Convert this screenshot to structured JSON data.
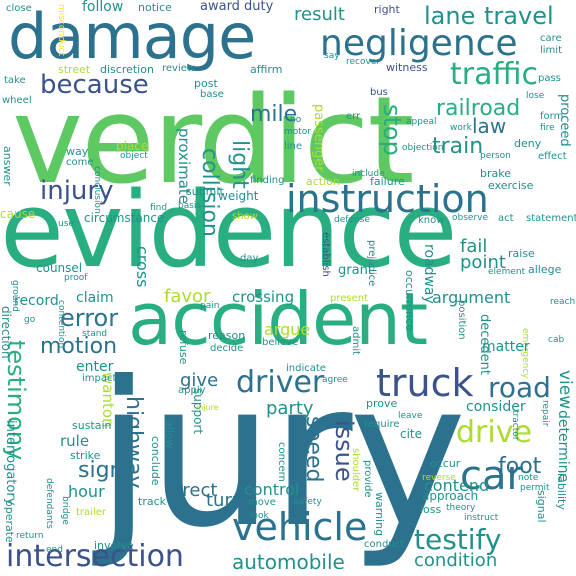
{
  "palette": {
    "dark_purple": "#440154",
    "indigo": "#3b528b",
    "teal_blue": "#2c728e",
    "teal": "#21918c",
    "green_teal": "#28ae80",
    "green": "#5ec962",
    "light_green": "#addc30",
    "yellow": "#fde725"
  },
  "words": {
    "verdict": "verdict",
    "evidence": "evidence",
    "jury": "jury",
    "accident": "accident",
    "damage": "damage",
    "instruction": "instruction",
    "negligence": "negligence",
    "vehicle": "vehicle",
    "intersection": "intersection",
    "truck": "truck",
    "driver": "driver",
    "automobile": "automobile",
    "testify": "testify",
    "car": "car",
    "traffic": "traffic",
    "drive": "drive",
    "road": "road",
    "injury": "injury",
    "because": "because",
    "collision": "collision",
    "lane": "lane",
    "travel": "travel",
    "railroad": "railroad",
    "train": "train",
    "law": "law",
    "stop": "stop",
    "mile": "mile",
    "light": "light",
    "error": "error",
    "motion": "motion",
    "testimony": "testimony",
    "highway": "highway",
    "speed": "speed",
    "issue": "issue",
    "foot": "foot",
    "direct": "direct",
    "condition": "condition",
    "sign": "sign",
    "result": "result",
    "proximate": "proximate",
    "favor": "favor",
    "cross": "cross",
    "crossing": "crossing",
    "argument": "argument",
    "fail": "fail",
    "point": "point",
    "give": "give",
    "party": "party",
    "turn": "turn",
    "control": "control",
    "contend": "contend",
    "consider": "consider",
    "matter": "matter",
    "hour": "hour",
    "rule": "rule",
    "wanton": "wanton",
    "enter": "enter",
    "argue": "argue",
    "interrogatory": "interrogatory",
    "claim": "claim",
    "record": "record",
    "counsel": "counsel",
    "cause": "cause",
    "circumstance": "circumstance",
    "award": "award",
    "duty": "duty",
    "follow": "follow",
    "notice": "notice",
    "close": "close",
    "right": "right",
    "street": "street",
    "discretion": "discretion",
    "review": "review",
    "affirm": "affirm",
    "witness": "witness",
    "recover": "recover",
    "say": "say",
    "pass": "pass",
    "take": "take",
    "wheel": "wheel",
    "post": "post",
    "base": "base",
    "bus": "bus",
    "passenger": "passenger",
    "err": "err",
    "way": "way",
    "place": "place",
    "object": "object",
    "come": "come",
    "answer": "answer",
    "conclusion": "conclusion",
    "support": "support",
    "weight": "weight",
    "finding": "finding",
    "action": "action",
    "failure": "failure",
    "include": "include",
    "brake": "brake",
    "exercise": "exercise",
    "submit": "submit",
    "basis": "basis",
    "show": "show",
    "defense": "defense",
    "know": "know",
    "observe": "observe",
    "act": "act",
    "statement": "statement",
    "establish": "establish",
    "grant": "grant",
    "raise": "raise",
    "allege": "allege",
    "element": "element",
    "present": "present",
    "roadway": "roadway",
    "day": "day",
    "pain": "pain",
    "proof": "proof",
    "reason": "reason",
    "decide": "decide",
    "believe": "believe",
    "admit": "admit",
    "refuse": "refuse",
    "indicate": "indicate",
    "agree": "agree",
    "impact": "impact",
    "apply": "apply",
    "injure": "injure",
    "prove": "prove",
    "leave": "leave",
    "cite": "cite",
    "require": "require",
    "occur": "occur",
    "reverse": "reverse",
    "approach": "approach",
    "loss": "loss",
    "theory": "theory",
    "instruct": "instruct",
    "conduct": "conduct",
    "involve": "involve",
    "track": "track",
    "move": "move",
    "look": "look",
    "safety": "safety",
    "conclude": "conclude",
    "allow": "allow",
    "strike": "strike",
    "sustain": "sustain",
    "trailer": "trailer",
    "bridge": "bridge",
    "operate": "operate",
    "defendants": "defendants",
    "return": "return",
    "end": "end",
    "liability": "liability",
    "signal": "signal",
    "warning": "warning",
    "provide": "provide",
    "concern": "concern",
    "shoulder": "shoulder",
    "view": "view",
    "determine": "determine",
    "permit": "permit",
    "tractor": "tractor",
    "note": "note",
    "repair": "repair",
    "position": "position",
    "decedent": "decedent",
    "occurrence": "occurrence",
    "prejudice": "prejudice",
    "reach": "reach",
    "cab": "cab",
    "emergency": "emergency",
    "line": "line",
    "motor": "motor",
    "no": "no",
    "appeal": "appeal",
    "objection": "objection",
    "deny": "deny",
    "effect": "effect",
    "person": "person",
    "work": "work",
    "lose": "lose",
    "proceed": "proceed",
    "care": "care",
    "limit": "limit",
    "form": "form",
    "fire": "fire",
    "ground": "ground",
    "direction": "direction",
    "stand": "stand",
    "contention": "contention",
    "go": "go",
    "misconduct": "misconduct",
    "use": "use",
    "find": "find"
  }
}
